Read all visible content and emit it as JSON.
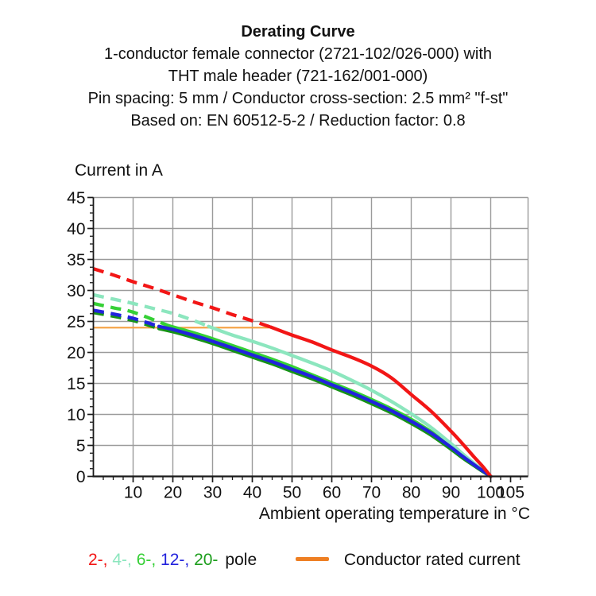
{
  "chart_data": {
    "type": "line",
    "title": "Derating Curve",
    "subtitle_lines": [
      "1-conductor female connector (2721-102/026-000) with",
      "THT male header (721-162/001-000)",
      "Pin spacing: 5 mm / Conductor cross-section: 2.5 mm² \"f-st\"",
      "Based on: EN 60512-5-2 / Reduction factor: 0.8"
    ],
    "ylabel": "Current in A",
    "xlabel": "Ambient operating temperature in °C",
    "xlim": [
      0,
      109.4
    ],
    "ylim": [
      0,
      45
    ],
    "x_gridlines": [
      10,
      20,
      30,
      40,
      50,
      60,
      70,
      80,
      90,
      100
    ],
    "x_major_ticks": [
      10,
      20,
      30,
      40,
      50,
      60,
      70,
      80,
      90,
      100,
      105
    ],
    "y_major_ticks": [
      0,
      5,
      10,
      15,
      20,
      25,
      30,
      35,
      40,
      45
    ],
    "x_minor_step": 2.5,
    "y_minor_step": 1.25,
    "grid": true,
    "grid_color": "#9b9b9b",
    "axis_color": "#1a1a1a",
    "rated_current_line": {
      "label": "Conductor rated current",
      "value": 24,
      "x_start": 0,
      "x_end": 44.6,
      "color": "#F5A041"
    },
    "series": [
      {
        "name": "20-pole",
        "color": "#179317",
        "dash_until": 16.5,
        "points": [
          [
            0,
            26.45
          ],
          [
            5,
            25.85
          ],
          [
            10,
            25.15
          ],
          [
            16.5,
            23.85
          ],
          [
            20,
            23.35
          ],
          [
            25,
            22.45
          ],
          [
            30,
            21.45
          ],
          [
            35,
            20.35
          ],
          [
            40,
            19.25
          ],
          [
            45,
            18.15
          ],
          [
            50,
            16.95
          ],
          [
            55,
            15.75
          ],
          [
            60,
            14.45
          ],
          [
            65,
            13.15
          ],
          [
            70,
            11.75
          ],
          [
            75,
            10.25
          ],
          [
            80,
            8.55
          ],
          [
            85,
            6.65
          ],
          [
            90,
            4.4
          ],
          [
            93,
            2.95
          ],
          [
            96,
            1.65
          ],
          [
            98,
            0.8
          ],
          [
            100,
            0
          ]
        ]
      },
      {
        "name": "6-pole",
        "color": "#35D035",
        "dash_until": 19,
        "points": [
          [
            0,
            27.9
          ],
          [
            5,
            27.2
          ],
          [
            10,
            26.5
          ],
          [
            19,
            24.3
          ],
          [
            25,
            23.2
          ],
          [
            30,
            22.2
          ],
          [
            35,
            21.1
          ],
          [
            40,
            20.0
          ],
          [
            45,
            18.9
          ],
          [
            50,
            17.7
          ],
          [
            55,
            16.4
          ],
          [
            60,
            15.1
          ],
          [
            65,
            13.8
          ],
          [
            70,
            12.4
          ],
          [
            75,
            10.9
          ],
          [
            80,
            9.2
          ],
          [
            85,
            7.2
          ],
          [
            90,
            4.9
          ],
          [
            93,
            3.3
          ],
          [
            96,
            1.9
          ],
          [
            98,
            1.0
          ],
          [
            100,
            0
          ]
        ]
      },
      {
        "name": "4-pole",
        "color": "#8CE6BE",
        "dash_until": 29,
        "points": [
          [
            0,
            29.3
          ],
          [
            5,
            28.6
          ],
          [
            10,
            27.9
          ],
          [
            15,
            27.1
          ],
          [
            20,
            26.3
          ],
          [
            25,
            25.2
          ],
          [
            29,
            24.2
          ],
          [
            35,
            22.8
          ],
          [
            40,
            21.8
          ],
          [
            45,
            20.7
          ],
          [
            50,
            19.5
          ],
          [
            55,
            18.3
          ],
          [
            60,
            17.0
          ],
          [
            65,
            15.5
          ],
          [
            70,
            13.9
          ],
          [
            75,
            12.1
          ],
          [
            80,
            10.1
          ],
          [
            85,
            7.9
          ],
          [
            90,
            5.3
          ],
          [
            93,
            3.6
          ],
          [
            96,
            2.0
          ],
          [
            98,
            1.0
          ],
          [
            100,
            0
          ]
        ]
      },
      {
        "name": "12-pole",
        "color": "#2222DD",
        "dash_until": 16.5,
        "points": [
          [
            0,
            26.8
          ],
          [
            5,
            26.2
          ],
          [
            10,
            25.5
          ],
          [
            16.5,
            24.2
          ],
          [
            20,
            23.7
          ],
          [
            25,
            22.8
          ],
          [
            30,
            21.8
          ],
          [
            35,
            20.7
          ],
          [
            40,
            19.6
          ],
          [
            45,
            18.5
          ],
          [
            50,
            17.3
          ],
          [
            55,
            16.1
          ],
          [
            60,
            14.8
          ],
          [
            65,
            13.5
          ],
          [
            70,
            12.1
          ],
          [
            75,
            10.6
          ],
          [
            80,
            8.9
          ],
          [
            85,
            7.0
          ],
          [
            90,
            4.7
          ],
          [
            93,
            3.2
          ],
          [
            96,
            1.8
          ],
          [
            98,
            0.9
          ],
          [
            100,
            0
          ]
        ]
      },
      {
        "name": "2-pole",
        "color": "#F21616",
        "dash_until": 44.6,
        "points": [
          [
            0,
            33.5
          ],
          [
            5,
            32.5
          ],
          [
            10,
            31.4
          ],
          [
            15,
            30.4
          ],
          [
            20,
            29.3
          ],
          [
            25,
            28.2
          ],
          [
            30,
            27.2
          ],
          [
            35,
            26.1
          ],
          [
            40,
            25.1
          ],
          [
            44.6,
            24.1
          ],
          [
            50,
            22.8
          ],
          [
            55,
            21.7
          ],
          [
            60,
            20.4
          ],
          [
            65,
            19.2
          ],
          [
            70,
            17.8
          ],
          [
            75,
            15.9
          ],
          [
            80,
            13.2
          ],
          [
            85,
            10.5
          ],
          [
            90,
            7.3
          ],
          [
            93,
            5.2
          ],
          [
            96,
            3.0
          ],
          [
            98,
            1.6
          ],
          [
            100,
            0
          ]
        ]
      }
    ]
  },
  "legend": {
    "pole_items": [
      {
        "label": "2-",
        "color": "#F21616"
      },
      {
        "label": "4-",
        "color": "#8CE6BE"
      },
      {
        "label": "6-",
        "color": "#35D035"
      },
      {
        "label": "12-",
        "color": "#2222DD"
      },
      {
        "label": "20-",
        "color": "#1C9E1C"
      }
    ],
    "separator": ", ",
    "pole_suffix": "pole",
    "rated_label": "Conductor rated current",
    "rated_color": "#EE7F23"
  }
}
